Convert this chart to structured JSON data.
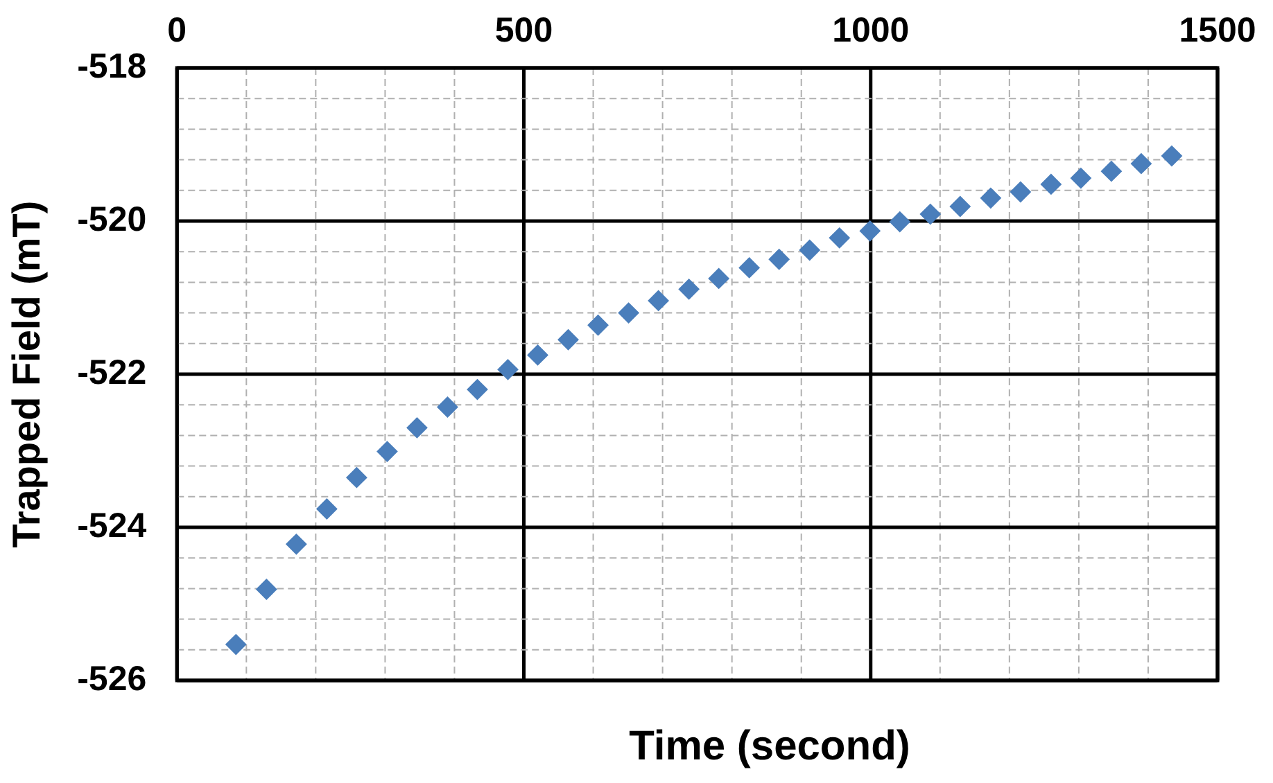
{
  "chart_data": {
    "type": "scatter",
    "xlabel": "Time (second)",
    "ylabel": "Trapped Field (mT)",
    "x": [
      85,
      129,
      172,
      216,
      259,
      303,
      346,
      390,
      433,
      477,
      520,
      564,
      607,
      651,
      694,
      738,
      781,
      825,
      868,
      912,
      955,
      999,
      1042,
      1086,
      1129,
      1173,
      1216,
      1260,
      1303,
      1347,
      1390,
      1434
    ],
    "series": [
      {
        "color": "#4a7ebb",
        "values": [
          -525.53,
          -524.81,
          -524.22,
          -523.76,
          -523.35,
          -523.01,
          -522.7,
          -522.43,
          -522.2,
          -521.94,
          -521.75,
          -521.55,
          -521.36,
          -521.2,
          -521.04,
          -520.89,
          -520.75,
          -520.61,
          -520.5,
          -520.38,
          -520.22,
          -520.13,
          -520.01,
          -519.91,
          -519.81,
          -519.7,
          -519.62,
          -519.52,
          -519.44,
          -519.35,
          -519.25,
          -519.15
        ]
      }
    ],
    "xlim": [
      0,
      1500
    ],
    "xticks": [
      0,
      {
        "value": 100,
        "label": null
      },
      {
        "value": 200,
        "label": null
      },
      {
        "value": 300,
        "label": null
      },
      {
        "value": 400,
        "label": null
      },
      500,
      {
        "value": 600,
        "label": null
      },
      {
        "value": 700,
        "label": null
      },
      {
        "value": 800,
        "label": null
      },
      {
        "value": 900,
        "label": null
      },
      1000,
      {
        "value": 1100,
        "label": null
      },
      {
        "value": 1200,
        "label": null
      },
      {
        "value": 1300,
        "label": null
      },
      {
        "value": 1400,
        "label": null
      },
      1500
    ],
    "ylim": [
      -526,
      -518
    ],
    "yticks": [
      -526,
      {
        "value": -525.6,
        "label": null
      },
      {
        "value": -525.2,
        "label": null
      },
      {
        "value": -524.8,
        "label": null
      },
      {
        "value": -524.4,
        "label": null
      },
      -524,
      {
        "value": -523.6,
        "label": null
      },
      {
        "value": -523.2,
        "label": null
      },
      {
        "value": -522.8,
        "label": null
      },
      {
        "value": -522.4,
        "label": null
      },
      -522,
      {
        "value": -521.6,
        "label": null
      },
      {
        "value": -521.2,
        "label": null
      },
      {
        "value": -520.8,
        "label": null
      },
      {
        "value": -520.4,
        "label": null
      },
      -520,
      {
        "value": -519.6,
        "label": null
      },
      {
        "value": -519.2,
        "label": null
      },
      {
        "value": -518.8,
        "label": null
      },
      {
        "value": -518.4,
        "label": null
      },
      -518
    ],
    "grid": true,
    "marker": "diamond",
    "legend": false
  }
}
